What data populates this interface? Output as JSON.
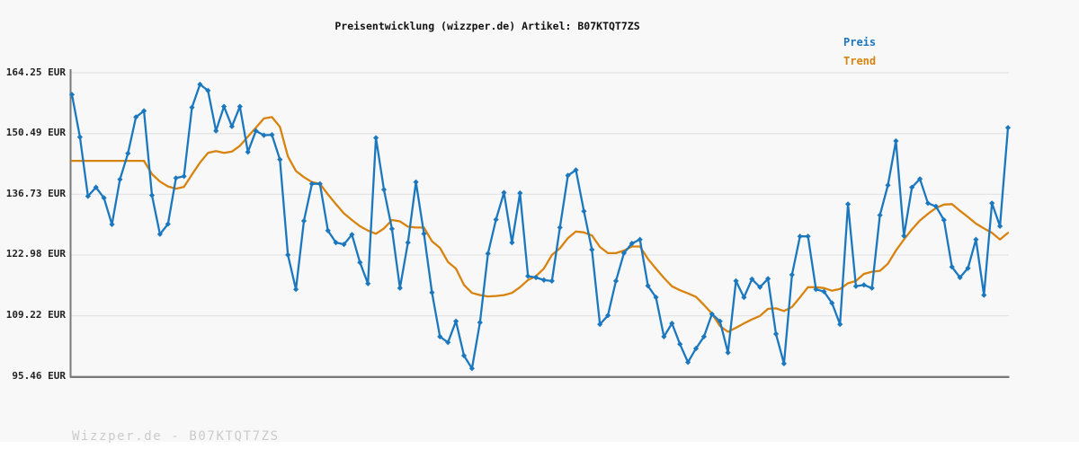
{
  "title": "Preisentwicklung (wizzper.de) Artikel: B07KTQT7ZS",
  "legend": {
    "price_label": "Preis",
    "trend_label": "Trend"
  },
  "footer": "Wizzper.de - B07KTQT7ZS",
  "colors": {
    "price": "#1b78be",
    "trend": "#d9830f",
    "grid": "#e5e5e5",
    "axis": "#7a7a7a",
    "background": "#f8f8f8",
    "tick_text": "#222222",
    "footer_text": "#cbcbcb"
  },
  "chart_data": {
    "type": "line",
    "title": "Preisentwicklung (wizzper.de) Artikel: B07KTQT7ZS",
    "ylabel": "EUR",
    "xlabel": "",
    "x_tick_labels": [],
    "y_ticks": [
      164.25,
      150.49,
      136.73,
      122.98,
      109.22,
      95.46
    ],
    "y_tick_labels": [
      "164.25 EUR",
      "150.49 EUR",
      "136.73 EUR",
      "122.98 EUR",
      "109.22 EUR",
      "95.46 EUR"
    ],
    "ylim": [
      95.46,
      164.25
    ],
    "grid": "horizontal",
    "legend_position": "top-right",
    "marker": "diamond",
    "series": [
      {
        "name": "Preis",
        "color": "#1b78be",
        "values": [
          159.3,
          149.7,
          136.3,
          138.3,
          135.9,
          129.9,
          140.1,
          146.0,
          154.2,
          155.6,
          136.5,
          127.7,
          130.0,
          140.4,
          140.8,
          156.4,
          161.6,
          160.2,
          151.1,
          156.6,
          152.1,
          156.6,
          146.3,
          151.1,
          150.1,
          150.2,
          144.6,
          123.0,
          115.2,
          130.7,
          139.1,
          139.1,
          128.5,
          125.8,
          125.4,
          127.6,
          121.3,
          116.5,
          149.5,
          137.8,
          128.9,
          115.5,
          125.8,
          139.5,
          127.8,
          114.5,
          104.5,
          103.2,
          108.0,
          100.2,
          97.3,
          107.7,
          123.3,
          131.0,
          137.1,
          125.8,
          137.0,
          118.2,
          117.9,
          117.3,
          117.1,
          129.2,
          141.0,
          142.2,
          132.9,
          124.2,
          107.3,
          109.3,
          117.1,
          123.4,
          125.6,
          126.5,
          116.0,
          113.4,
          104.5,
          107.5,
          102.8,
          98.7,
          101.8,
          104.5,
          109.6,
          108.0,
          100.9,
          117.1,
          113.4,
          117.5,
          115.7,
          117.6,
          105.1,
          98.4,
          118.5,
          127.2,
          127.2,
          115.2,
          114.7,
          112.1,
          107.3,
          134.5,
          115.9,
          116.2,
          115.5,
          132.0,
          138.8,
          148.8,
          127.3,
          138.3,
          140.2,
          134.7,
          134.0,
          130.9,
          120.3,
          117.9,
          120.0,
          126.5,
          113.9,
          134.7,
          129.5,
          151.8
        ]
      },
      {
        "name": "Trend",
        "color": "#d9830f",
        "values": [
          144.3,
          144.3,
          144.3,
          144.3,
          144.3,
          144.3,
          144.3,
          144.3,
          144.3,
          144.3,
          141.3,
          139.6,
          138.5,
          138.0,
          138.4,
          141.2,
          143.9,
          146.1,
          146.5,
          146.1,
          146.4,
          147.7,
          149.8,
          151.8,
          153.9,
          154.2,
          152.0,
          145.3,
          142.0,
          140.6,
          139.5,
          139.1,
          136.7,
          134.5,
          132.4,
          130.9,
          129.5,
          128.5,
          127.8,
          129.0,
          130.9,
          130.6,
          129.4,
          129.2,
          129.2,
          126.1,
          124.6,
          121.4,
          119.9,
          116.2,
          114.4,
          113.9,
          113.6,
          113.7,
          113.9,
          114.4,
          115.7,
          117.3,
          118.2,
          119.9,
          123.0,
          124.5,
          126.8,
          128.3,
          128.1,
          127.4,
          124.8,
          123.4,
          123.4,
          124.0,
          124.9,
          124.9,
          122.1,
          119.9,
          117.8,
          115.9,
          115.0,
          114.3,
          113.5,
          111.7,
          109.7,
          106.9,
          105.6,
          106.5,
          107.5,
          108.4,
          109.2,
          110.8,
          110.9,
          110.3,
          111.2,
          113.4,
          115.7,
          115.7,
          115.5,
          114.9,
          115.3,
          116.6,
          117.1,
          118.7,
          119.2,
          119.4,
          121.0,
          124.0,
          126.5,
          128.8,
          130.8,
          132.3,
          133.6,
          134.4,
          134.5,
          133.0,
          131.6,
          130.1,
          129.0,
          128.0,
          126.5,
          128.0
        ]
      }
    ]
  }
}
